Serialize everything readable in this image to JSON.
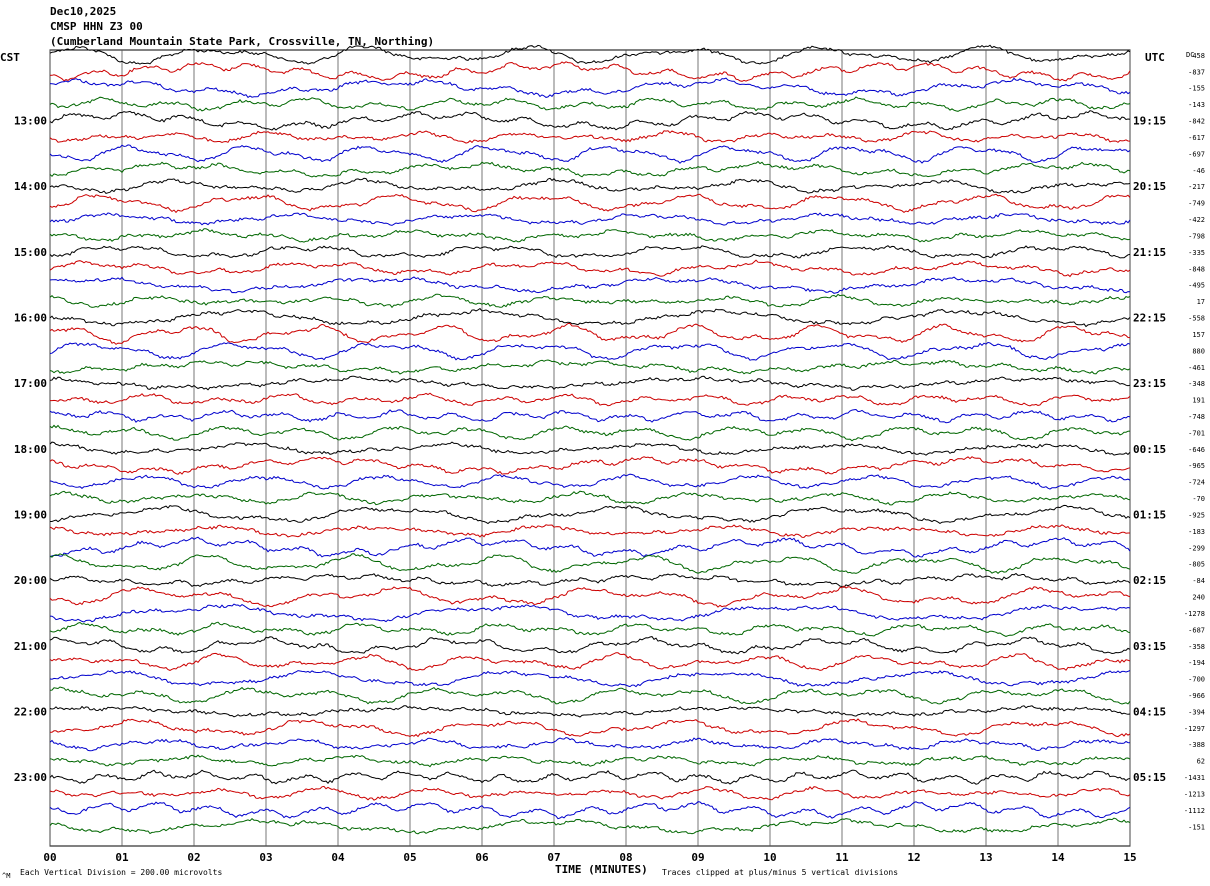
{
  "header": {
    "date": "Dec10,2025",
    "station": "CMSP HHN Z3 00",
    "location": "(Cumberland Mountain State Park, Crossville, TN, Northing)"
  },
  "left_axis_label": "CST",
  "right_axis_label": "UTC",
  "dc_label": "DC",
  "footer": {
    "scale_note": "Each Vertical Division =  200.00 microvolts",
    "xlabel": "TIME (MINUTES)",
    "clip_note": "Traces clipped at plus/minus 5 vertical divisions",
    "corner_mark": "^M"
  },
  "colors": {
    "black": "#000000",
    "red": "#cc0000",
    "blue": "#0000cc",
    "green": "#006600",
    "grid": "#000000"
  },
  "chart_data": {
    "type": "line",
    "title": "CMSP HHN Z3 00",
    "xlabel": "TIME (MINUTES)",
    "ylabel": "",
    "xlim": [
      0,
      15
    ],
    "x_ticks": [
      "00",
      "01",
      "02",
      "03",
      "04",
      "05",
      "06",
      "07",
      "08",
      "09",
      "10",
      "11",
      "12",
      "13",
      "14",
      "15"
    ],
    "left_time_labels": [
      "13:00",
      "14:00",
      "15:00",
      "16:00",
      "17:00",
      "18:00",
      "19:00",
      "20:00",
      "21:00",
      "22:00",
      "23:00"
    ],
    "right_time_labels": [
      "19:15",
      "20:15",
      "21:15",
      "22:15",
      "23:15",
      "00:15",
      "01:15",
      "02:15",
      "03:15",
      "04:15",
      "05:15"
    ],
    "trace_color_cycle": [
      "black",
      "red",
      "blue",
      "green"
    ],
    "dc_offsets": [
      "458",
      "-837",
      "-155",
      "-143",
      "-842",
      "-617",
      "-697",
      "-46",
      "-217",
      "-749",
      "-422",
      "-798",
      "-335",
      "-848",
      "-495",
      "17",
      "-558",
      "157",
      "880",
      "-461",
      "-348",
      "191",
      "-748",
      "-701",
      "-646",
      "-965",
      "-724",
      "-70",
      "-925",
      "-183",
      "-299",
      "-805",
      "-84",
      "240",
      "-1278",
      "-687",
      "-358",
      "-194",
      "-700",
      "-966",
      "-394",
      "-1297",
      "-388",
      "62",
      "-1431",
      "-1213",
      "-1112",
      "-151"
    ]
  }
}
